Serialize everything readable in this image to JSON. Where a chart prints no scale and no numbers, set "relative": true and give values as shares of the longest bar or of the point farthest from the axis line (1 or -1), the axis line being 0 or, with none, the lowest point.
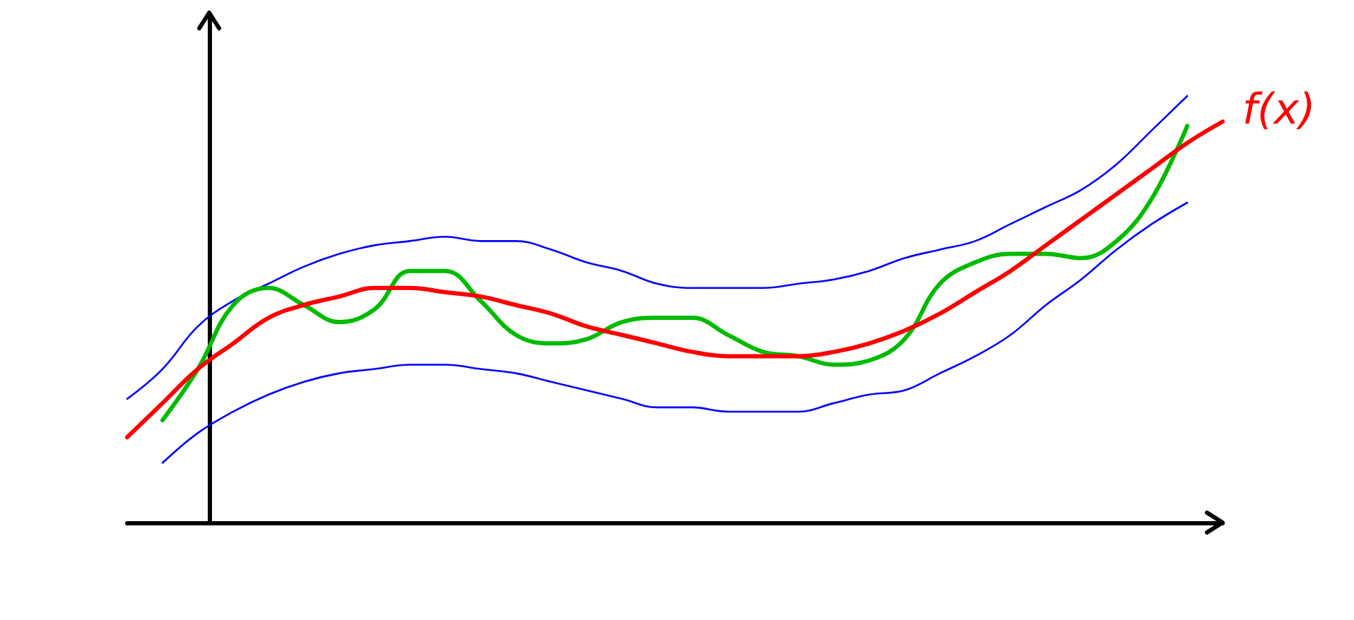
{
  "chart_data": {
    "type": "line",
    "relative": true,
    "legend": false,
    "grid": false,
    "marker": "none",
    "line_style": "solid",
    "categories": [
      null,
      null,
      null,
      null,
      null,
      null,
      null,
      null,
      null,
      null,
      null,
      null,
      null,
      null,
      null,
      null,
      null,
      null,
      null,
      null,
      null,
      null,
      null,
      null,
      null,
      null,
      null,
      null,
      null,
      null,
      null,
      null
    ],
    "series": [
      {
        "color": "#0000ff",
        "values": [
          0.29,
          0.36,
          0.46,
          0.52,
          0.56,
          0.6,
          0.63,
          0.65,
          0.66,
          0.67,
          0.66,
          0.66,
          0.64,
          0.61,
          0.59,
          0.56,
          0.55,
          0.55,
          0.55,
          0.56,
          0.57,
          0.59,
          0.62,
          0.64,
          0.66,
          0.7,
          0.74,
          0.78,
          0.84,
          0.92,
          1,
          null
        ]
      },
      {
        "color": "#0000ff",
        "values": [
          null,
          0.14,
          0.21,
          0.26,
          0.3,
          0.33,
          0.35,
          0.36,
          0.37,
          0.37,
          0.36,
          0.35,
          0.33,
          0.31,
          0.29,
          0.27,
          0.27,
          0.26,
          0.26,
          0.26,
          0.28,
          0.3,
          0.31,
          0.35,
          0.39,
          0.44,
          0.51,
          0.57,
          0.64,
          0.7,
          0.75,
          null
        ]
      },
      {
        "color": "#00bb00",
        "values": [
          null,
          0.24,
          0.36,
          0.51,
          0.55,
          0.51,
          0.47,
          0.5,
          0.59,
          0.59,
          0.52,
          0.44,
          0.42,
          0.43,
          0.47,
          0.48,
          0.48,
          0.44,
          0.4,
          0.39,
          0.37,
          0.38,
          0.43,
          0.56,
          0.61,
          0.63,
          0.63,
          0.62,
          0.66,
          0.76,
          0.93,
          null
        ]
      },
      {
        "name": "f(x)",
        "color": "#ff0000",
        "values": [
          0.2,
          0.28,
          0.36,
          0.42,
          0.48,
          0.51,
          0.53,
          0.55,
          0.55,
          0.54,
          0.53,
          0.51,
          0.49,
          0.46,
          0.44,
          0.42,
          0.4,
          0.39,
          0.39,
          0.39,
          0.4,
          0.42,
          0.45,
          0.49,
          0.54,
          0.59,
          0.65,
          0.71,
          0.77,
          0.83,
          0.89,
          0.94
        ]
      }
    ]
  }
}
